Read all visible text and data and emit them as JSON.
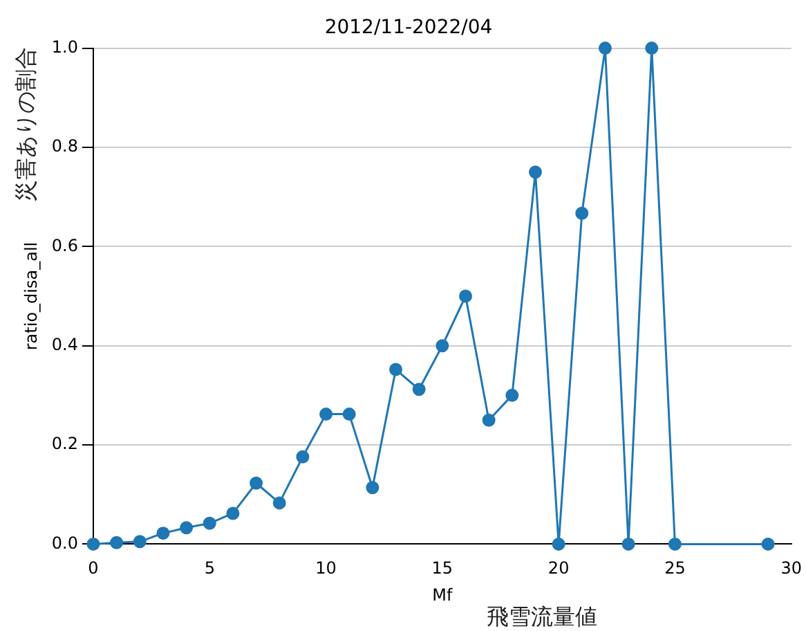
{
  "chart_data": {
    "type": "line",
    "title": "2012/11-2022/04",
    "xlabel": "Mf",
    "ylabel": "ratio_disa_all",
    "annotations": [
      "飛雪流量値",
      "災害ありの割合"
    ],
    "x": [
      0,
      1,
      2,
      3,
      4,
      5,
      6,
      7,
      8,
      9,
      10,
      11,
      12,
      13,
      14,
      15,
      16,
      17,
      18,
      19,
      20,
      21,
      22,
      23,
      24,
      25,
      29
    ],
    "series": [
      {
        "color": "#1f77b4",
        "values": [
          0,
          0.003,
          0.005,
          0.022,
          0.033,
          0.042,
          0.062,
          0.123,
          0.083,
          0.176,
          0.262,
          0.262,
          0.114,
          0.352,
          0.312,
          0.4,
          0.5,
          0.25,
          0.3,
          0.75,
          0,
          0.667,
          1,
          0,
          1,
          0,
          0
        ]
      }
    ],
    "xlim": [
      0,
      30
    ],
    "xticks": [
      0,
      5,
      10,
      15,
      20,
      25,
      30
    ],
    "ylim": [
      0,
      1
    ],
    "yticks": [
      {
        "value": 0,
        "label": "0.0"
      },
      {
        "value": 0.2,
        "label": "0.2"
      },
      {
        "value": 0.4,
        "label": "0.4"
      },
      {
        "value": 0.6,
        "label": "0.6"
      },
      {
        "value": 0.8,
        "label": "0.8"
      },
      {
        "value": 1,
        "label": "1.0"
      }
    ],
    "grid": "y",
    "legend": false,
    "marker": "circle",
    "line_style": "solid"
  }
}
